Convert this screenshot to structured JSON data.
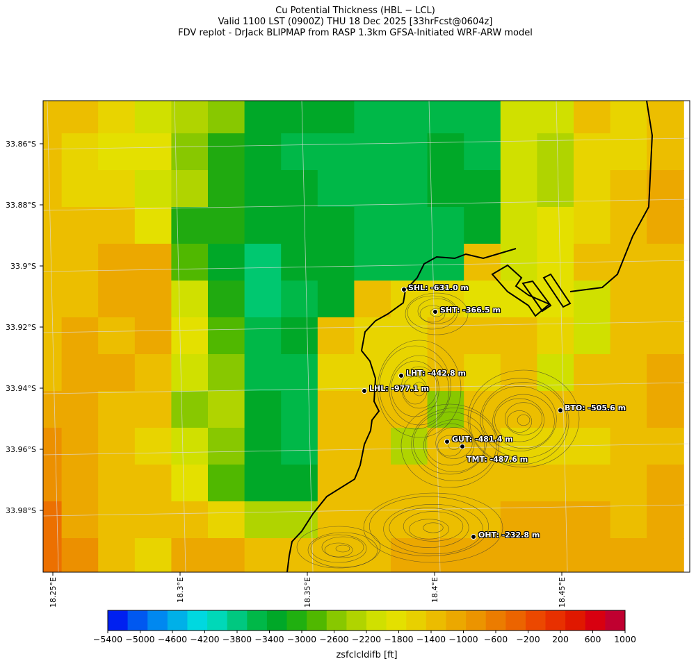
{
  "header": {
    "line1": "Cu Potential Thickness (HBL − LCL)",
    "line2": "Valid 1100 LST (0900Z) THU 18 Dec 2025 [33hrFcst@0604z]",
    "line3": "FDV replot - DrJack BLIPMAP from RASP 1.3km GFSA-Initiated WRF-ARW model"
  },
  "axes": {
    "lat_labels": [
      "33.86°S",
      "33.88°S",
      "33.9°S",
      "33.92°S",
      "33.94°S",
      "33.96°S",
      "33.98°S"
    ],
    "lon_labels": [
      "18.25°E",
      "18.3°E",
      "18.35°E",
      "18.4°E",
      "18.45°E"
    ]
  },
  "stations": [
    {
      "code": "SHL",
      "label": "SHL: -631.0 m"
    },
    {
      "code": "SHT",
      "label": "SHT: -366.5 m"
    },
    {
      "code": "LHT",
      "label": "LHT: -442.8 m"
    },
    {
      "code": "LHL",
      "label": "LHL: -977.1 m"
    },
    {
      "code": "BTO",
      "label": "BTO: -505.6 m"
    },
    {
      "code": "GUT",
      "label": "GUT: -481.4 m"
    },
    {
      "code": "TMT",
      "label": "TMT: -487.6 m"
    },
    {
      "code": "OHT",
      "label": "OHT: -232.8 m"
    }
  ],
  "colorbar": {
    "label": "zsfclcldifb [ft]",
    "ticks": [
      "−5400",
      "−5000",
      "−4600",
      "−4200",
      "−3800",
      "−3400",
      "−3000",
      "−2600",
      "−2200",
      "−1800",
      "−1400",
      "−1000",
      "−600",
      "−200",
      "200",
      "600",
      "1000"
    ],
    "colors": [
      "#0020f0",
      "#0058f0",
      "#0088f0",
      "#00b0e8",
      "#00d8e0",
      "#00d8b8",
      "#00c880",
      "#00b848",
      "#00a828",
      "#20b010",
      "#50b800",
      "#88c800",
      "#b0d400",
      "#d0e000",
      "#e4e000",
      "#e8d000",
      "#ecbc00",
      "#eca800",
      "#ec9400",
      "#ec7c00",
      "#ec6400",
      "#ec4800",
      "#e83000",
      "#e01800",
      "#d80010",
      "#c00030"
    ]
  },
  "colors": {
    "coast": "#000000",
    "grid": "#dcdcdc",
    "contour": "#333333"
  }
}
